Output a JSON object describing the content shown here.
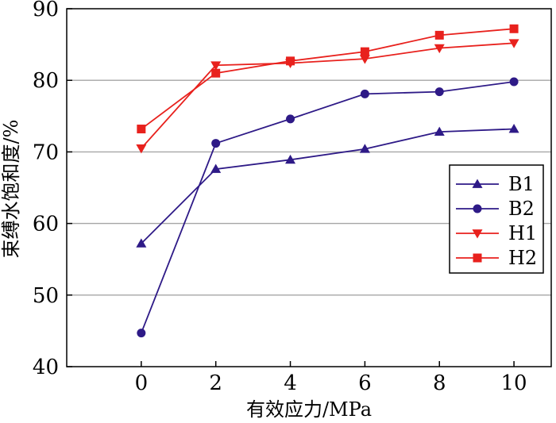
{
  "chart_data": {
    "type": "line",
    "title": "",
    "xlabel": "有效应力/MPa",
    "ylabel": "束缚水饱和度/%",
    "x": [
      0,
      2,
      4,
      6,
      8,
      10
    ],
    "xlim": [
      -2,
      11
    ],
    "ylim": [
      40,
      90
    ],
    "xticks": [
      "0",
      "2",
      "4",
      "6",
      "8",
      "10"
    ],
    "yticks": [
      "40",
      "50",
      "60",
      "70",
      "80",
      "90"
    ],
    "grid": "horizontal",
    "legend_position": "right",
    "series": [
      {
        "name": "B1",
        "color": "#2e1a87",
        "marker": "triangle-up",
        "values": [
          57.2,
          67.6,
          68.9,
          70.4,
          72.8,
          73.2
        ]
      },
      {
        "name": "B2",
        "color": "#2e1a87",
        "marker": "circle",
        "values": [
          44.7,
          71.2,
          74.6,
          78.1,
          78.4,
          79.8
        ]
      },
      {
        "name": "H1",
        "color": "#e8211d",
        "marker": "triangle-down",
        "values": [
          70.5,
          82.1,
          82.4,
          83.0,
          84.5,
          85.2
        ]
      },
      {
        "name": "H2",
        "color": "#e8211d",
        "marker": "square",
        "values": [
          73.2,
          81.0,
          82.7,
          84.0,
          86.3,
          87.2
        ]
      }
    ]
  }
}
